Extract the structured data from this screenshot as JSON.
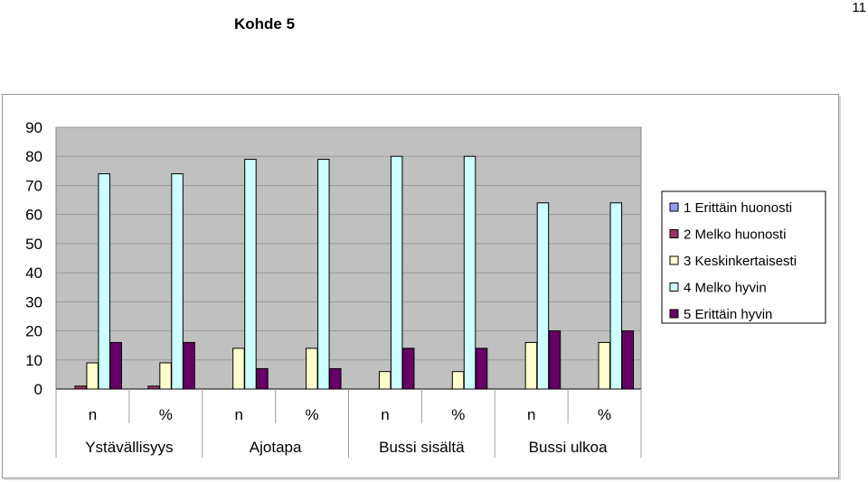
{
  "page": {
    "title": "Kohde 5",
    "number": "11"
  },
  "chart_data": {
    "type": "bar",
    "ylim": [
      0,
      90
    ],
    "y_ticks": [
      0,
      10,
      20,
      30,
      40,
      50,
      60,
      70,
      80,
      90
    ],
    "grid": true,
    "legend_position": "right",
    "plot_background": "#c0c0c0",
    "categories": [
      "n",
      "%",
      "n",
      "%",
      "n",
      "%",
      "n",
      "%"
    ],
    "groups": [
      "Ystävällisyys",
      "Ajotapa",
      "Bussi sisältä",
      "Bussi ulkoa"
    ],
    "series": [
      {
        "name": "1 Erittäin huonosti",
        "color": "#9999ff",
        "values": [
          0,
          0,
          0,
          0,
          0,
          0,
          0,
          0
        ]
      },
      {
        "name": "2 Melko huonosti",
        "color": "#993366",
        "values": [
          1,
          1,
          0,
          0,
          0,
          0,
          0,
          0
        ]
      },
      {
        "name": "3 Keskinkertaisesti",
        "color": "#ffffcc",
        "values": [
          9,
          9,
          14,
          14,
          6,
          6,
          16,
          16
        ]
      },
      {
        "name": "4 Melko hyvin",
        "color": "#ccffff",
        "values": [
          74,
          74,
          79,
          79,
          80,
          80,
          64,
          64
        ]
      },
      {
        "name": "5 Erittäin hyvin",
        "color": "#660066",
        "values": [
          16,
          16,
          7,
          7,
          14,
          14,
          20,
          20
        ]
      }
    ]
  }
}
